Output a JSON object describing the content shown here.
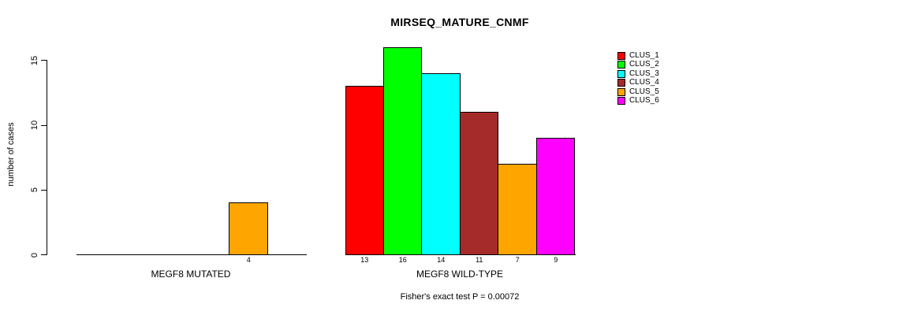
{
  "figure": {
    "background": "#ffffff",
    "axis_color": "#000000"
  },
  "chart_data": {
    "type": "bar",
    "title": "MIRSEQ_MATURE_CNMF",
    "xlabel": "",
    "ylabel": "number of cases",
    "ylim": [
      0,
      16
    ],
    "yticks": [
      0,
      5,
      10,
      15
    ],
    "grid": false,
    "legend_position": "right",
    "series_names": [
      "CLUS_1",
      "CLUS_2",
      "CLUS_3",
      "CLUS_4",
      "CLUS_5",
      "CLUS_6"
    ],
    "colors": [
      "#FF0000",
      "#00FF00",
      "#00FFFF",
      "#A52A2A",
      "#FFA500",
      "#FF00FF"
    ],
    "groups": [
      {
        "label": "MEGF8 MUTATED",
        "values": [
          0,
          0,
          0,
          0,
          4,
          0
        ],
        "bar_labels": [
          "",
          "",
          "",
          "",
          "4",
          ""
        ]
      },
      {
        "label": "MEGF8 WILD-TYPE",
        "values": [
          13,
          16,
          14,
          11,
          7,
          9
        ],
        "bar_labels": [
          "13",
          "16",
          "14",
          "11",
          "7",
          "9"
        ]
      }
    ],
    "annotation": "Fisher's exact test P = 0.00072"
  },
  "legend": {
    "items": [
      {
        "label": "CLUS_1",
        "color": "#FF0000"
      },
      {
        "label": "CLUS_2",
        "color": "#00FF00"
      },
      {
        "label": "CLUS_3",
        "color": "#00FFFF"
      },
      {
        "label": "CLUS_4",
        "color": "#A52A2A"
      },
      {
        "label": "CLUS_5",
        "color": "#FFA500"
      },
      {
        "label": "CLUS_6",
        "color": "#FF00FF"
      }
    ]
  }
}
